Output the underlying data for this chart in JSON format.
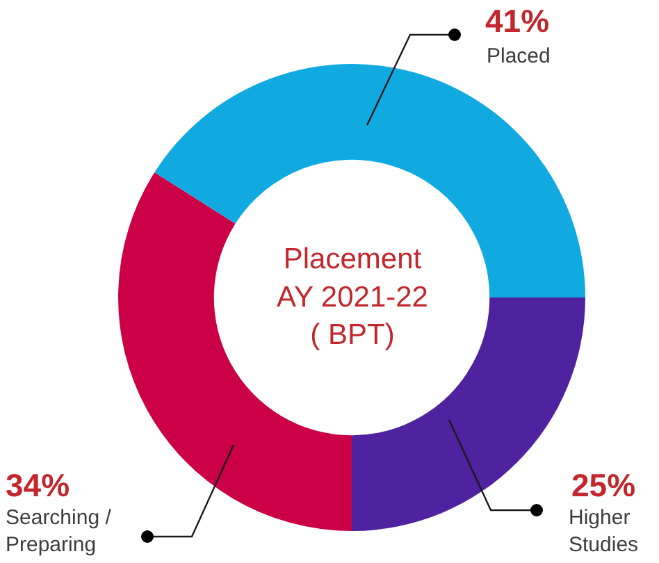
{
  "chart_data": {
    "type": "donut",
    "title": "Placement AY 2021-22 ( BPT)",
    "categories": [
      "Higher Studies",
      "Searching / Preparing",
      "Placed"
    ],
    "values": [
      25,
      34,
      41
    ],
    "colors": [
      "#4f22a0",
      "#cc0047",
      "#10aae1"
    ],
    "value_labels": [
      "25%",
      "34%",
      "41%"
    ]
  }
}
